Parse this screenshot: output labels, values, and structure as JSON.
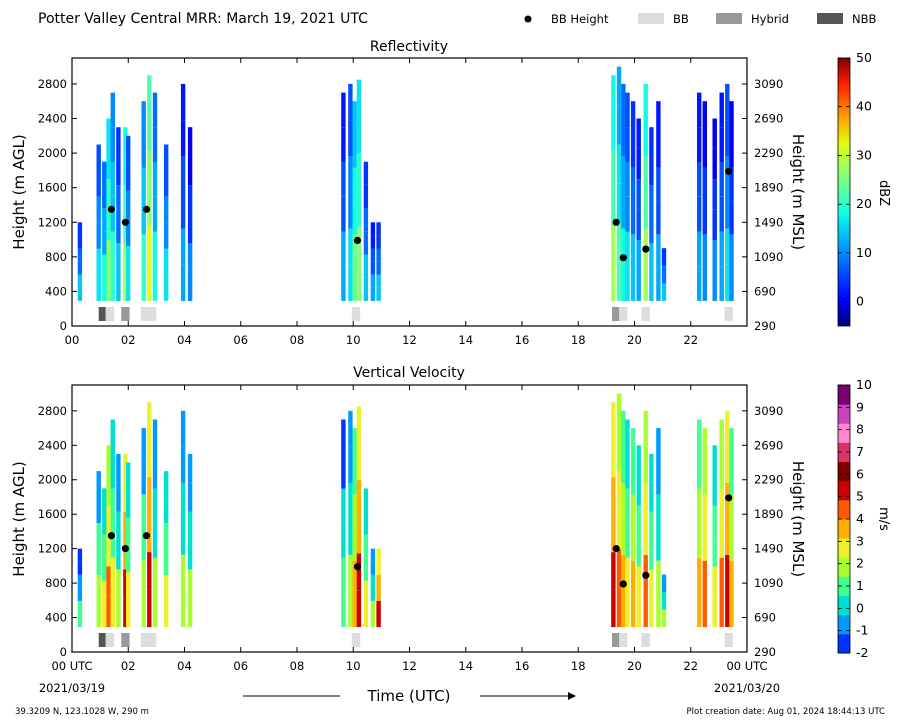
{
  "header": {
    "title": "Potter Valley Central MRR:  March 19, 2021 UTC",
    "legend": [
      {
        "label": "BB Height",
        "kind": "dot",
        "color": "#000000"
      },
      {
        "label": "BB",
        "kind": "box",
        "color": "#dddddd"
      },
      {
        "label": "Hybrid",
        "kind": "box",
        "color": "#999999"
      },
      {
        "label": "NBB",
        "kind": "box",
        "color": "#555555"
      }
    ]
  },
  "footer": {
    "location": "39.3209 N, 123.1028 W, 290 m",
    "creation": "Plot creation date: Aug 01, 2024 18:44:13 UTC",
    "xlabel": "Time (UTC)",
    "start_date": "2021/03/19",
    "end_date": "2021/03/20"
  },
  "chart_data": [
    {
      "type": "heatmap",
      "title": "Reflectivity",
      "ylabel": "Height (m AGL)",
      "y2label": "Height (m MSL)",
      "xlim": [
        0,
        24
      ],
      "ylim": [
        0,
        3100
      ],
      "xticks": [
        "00",
        "02",
        "04",
        "06",
        "08",
        "10",
        "12",
        "14",
        "16",
        "18",
        "20",
        "22"
      ],
      "yticks": [
        0,
        400,
        800,
        1200,
        1600,
        2000,
        2400,
        2800
      ],
      "y2ticks": [
        290,
        690,
        1090,
        1490,
        1890,
        2290,
        2690,
        3090
      ],
      "colorbar": {
        "label": "dBZ",
        "min": -5,
        "max": 50,
        "ticks": [
          0,
          10,
          20,
          30,
          40,
          50
        ]
      },
      "bb_height_points": [
        {
          "x": 1.4,
          "y": 1350
        },
        {
          "x": 1.9,
          "y": 1200
        },
        {
          "x": 2.65,
          "y": 1350
        },
        {
          "x": 10.15,
          "y": 990
        },
        {
          "x": 19.35,
          "y": 1200
        },
        {
          "x": 19.6,
          "y": 790
        },
        {
          "x": 20.4,
          "y": 890
        },
        {
          "x": 23.35,
          "y": 1790
        }
      ]
    },
    {
      "type": "heatmap",
      "title": "Vertical Velocity",
      "ylabel": "Height (m AGL)",
      "y2label": "Height (m MSL)",
      "xlim": [
        0,
        24
      ],
      "ylim": [
        0,
        3100
      ],
      "xticks": [
        "00 UTC",
        "02",
        "04",
        "06",
        "08",
        "10",
        "12",
        "14",
        "16",
        "18",
        "20",
        "22",
        "00 UTC"
      ],
      "yticks": [
        0,
        400,
        800,
        1200,
        1600,
        2000,
        2400,
        2800
      ],
      "y2ticks": [
        290,
        690,
        1090,
        1490,
        1890,
        2290,
        2690,
        3090
      ],
      "colorbar": {
        "label": "m/s",
        "min": -2,
        "max": 10,
        "ticks": [
          -2,
          -1,
          0,
          1,
          2,
          3,
          4,
          5,
          6,
          7,
          8,
          9,
          10
        ]
      },
      "bb_height_points": [
        {
          "x": 1.4,
          "y": 1350
        },
        {
          "x": 1.9,
          "y": 1200
        },
        {
          "x": 2.65,
          "y": 1350
        },
        {
          "x": 10.15,
          "y": 990
        },
        {
          "x": 19.35,
          "y": 1200
        },
        {
          "x": 19.6,
          "y": 790
        },
        {
          "x": 20.4,
          "y": 890
        },
        {
          "x": 23.35,
          "y": 1790
        }
      ]
    }
  ],
  "bb_types": [
    {
      "start": 0.95,
      "end": 1.2,
      "class": "NBB"
    },
    {
      "start": 1.2,
      "end": 1.5,
      "class": "BB"
    },
    {
      "start": 1.75,
      "end": 2.05,
      "class": "Hybrid"
    },
    {
      "start": 2.45,
      "end": 3.0,
      "class": "BB"
    },
    {
      "start": 9.95,
      "end": 10.25,
      "class": "BB"
    },
    {
      "start": 19.2,
      "end": 19.45,
      "class": "Hybrid"
    },
    {
      "start": 19.45,
      "end": 19.75,
      "class": "BB"
    },
    {
      "start": 20.25,
      "end": 20.55,
      "class": "BB"
    },
    {
      "start": 23.2,
      "end": 23.5,
      "class": "BB"
    }
  ],
  "echo_columns": [
    {
      "x": 0.28,
      "top": 1200,
      "vel": 1.2,
      "ref": 8
    },
    {
      "x": 0.95,
      "top": 2100,
      "vel": 2.5,
      "ref": 10
    },
    {
      "x": 1.15,
      "top": 1900,
      "vel": 3,
      "ref": 12
    },
    {
      "x": 1.3,
      "top": 2400,
      "vel": 5,
      "ref": 20
    },
    {
      "x": 1.45,
      "top": 2700,
      "vel": 3,
      "ref": 14
    },
    {
      "x": 1.65,
      "top": 2300,
      "vel": 2,
      "ref": 8
    },
    {
      "x": 1.9,
      "top": 2300,
      "vel": 6,
      "ref": 22
    },
    {
      "x": 2.0,
      "top": 2200,
      "vel": 3,
      "ref": 10
    },
    {
      "x": 2.55,
      "top": 2600,
      "vel": 2.5,
      "ref": 14
    },
    {
      "x": 2.75,
      "top": 2900,
      "vel": 6,
      "ref": 26
    },
    {
      "x": 2.95,
      "top": 2700,
      "vel": 2,
      "ref": 12
    },
    {
      "x": 3.35,
      "top": 2100,
      "vel": 3,
      "ref": 10
    },
    {
      "x": 3.95,
      "top": 2800,
      "vel": 2,
      "ref": 6
    },
    {
      "x": 4.2,
      "top": 2300,
      "vel": 2,
      "ref": 4
    },
    {
      "x": 9.65,
      "top": 2700,
      "vel": 1.5,
      "ref": 6
    },
    {
      "x": 9.9,
      "top": 2800,
      "vel": 2,
      "ref": 10
    },
    {
      "x": 10.05,
      "top": 2600,
      "vel": 4,
      "ref": 18
    },
    {
      "x": 10.2,
      "top": 2850,
      "vel": 6,
      "ref": 20
    },
    {
      "x": 10.45,
      "top": 1900,
      "vel": 3,
      "ref": 8
    },
    {
      "x": 10.7,
      "top": 1200,
      "vel": 2,
      "ref": 6
    },
    {
      "x": 10.9,
      "top": 1200,
      "vel": 6,
      "ref": 8
    },
    {
      "x": 19.25,
      "top": 2900,
      "vel": 6,
      "ref": 22
    },
    {
      "x": 19.45,
      "top": 3000,
      "vel": 5,
      "ref": 16
    },
    {
      "x": 19.6,
      "top": 2800,
      "vel": 4,
      "ref": 12
    },
    {
      "x": 19.75,
      "top": 2700,
      "vel": 3,
      "ref": 10
    },
    {
      "x": 19.95,
      "top": 2600,
      "vel": 4,
      "ref": 8
    },
    {
      "x": 20.15,
      "top": 2400,
      "vel": 3,
      "ref": 6
    },
    {
      "x": 20.4,
      "top": 2800,
      "vel": 5,
      "ref": 22
    },
    {
      "x": 20.6,
      "top": 2300,
      "vel": 3,
      "ref": 8
    },
    {
      "x": 20.85,
      "top": 2600,
      "vel": 2,
      "ref": 6
    },
    {
      "x": 21.05,
      "top": 900,
      "vel": 2,
      "ref": 8
    },
    {
      "x": 22.3,
      "top": 2700,
      "vel": 4,
      "ref": 6
    },
    {
      "x": 22.5,
      "top": 2600,
      "vel": 5,
      "ref": 4
    },
    {
      "x": 22.85,
      "top": 2400,
      "vel": 3,
      "ref": 4
    },
    {
      "x": 23.1,
      "top": 2700,
      "vel": 5,
      "ref": 6
    },
    {
      "x": 23.3,
      "top": 2800,
      "vel": 6,
      "ref": 10
    },
    {
      "x": 23.45,
      "top": 2600,
      "vel": 4,
      "ref": 4
    }
  ]
}
